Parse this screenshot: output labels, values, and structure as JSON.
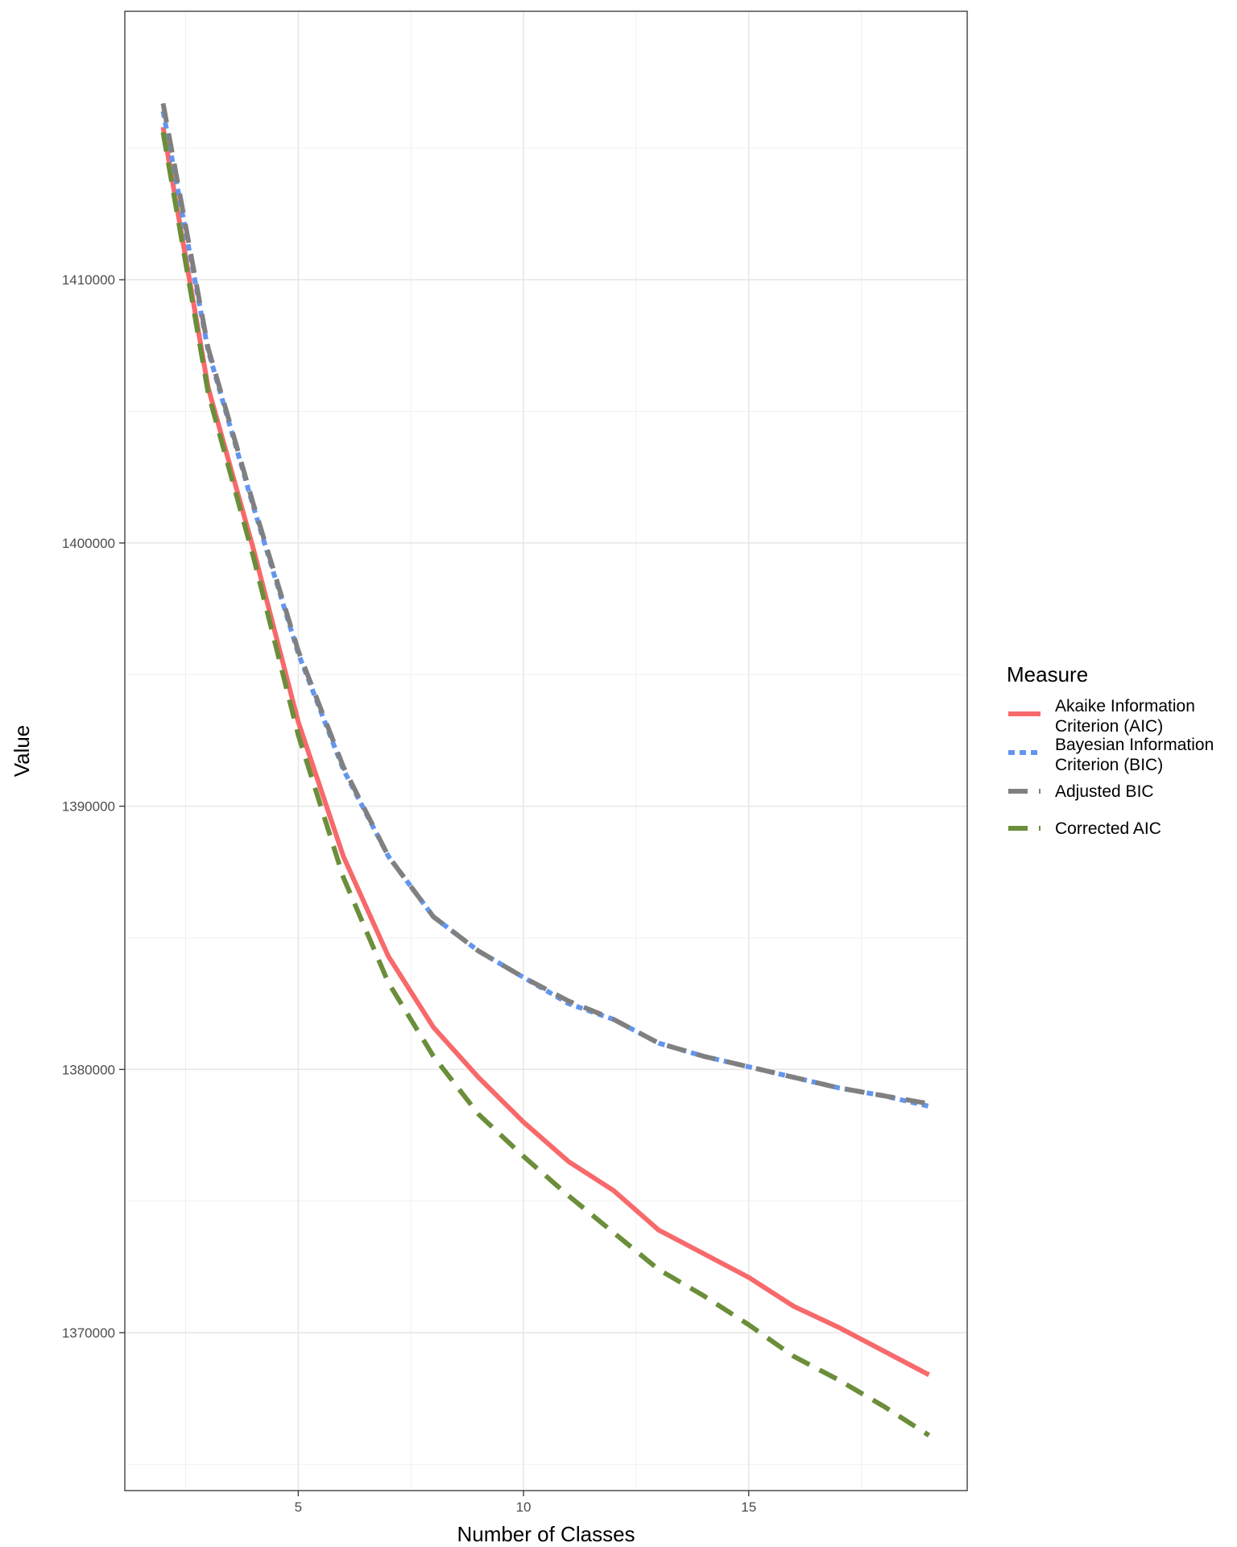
{
  "chart_data": {
    "type": "line",
    "xlabel": "Number of Classes",
    "ylabel": "Value",
    "xlim": [
      1.15,
      19.85
    ],
    "ylim": [
      1364000,
      1420200
    ],
    "x_ticks": [
      5,
      10,
      15
    ],
    "y_ticks": [
      1370000,
      1380000,
      1390000,
      1400000,
      1410000
    ],
    "grid": true,
    "legend": {
      "title": "Measure",
      "position": "right",
      "entries": [
        {
          "label_lines": [
            "Akaike Information",
            "Criterion (AIC)"
          ],
          "color": "#F8696B",
          "dash": "solid"
        },
        {
          "label_lines": [
            "Bayesian Information",
            "Criterion (BIC)"
          ],
          "color": "#6495ED",
          "dash": "dotted"
        },
        {
          "label_lines": [
            "Adjusted BIC"
          ],
          "color": "#808080",
          "dash": "dashed"
        },
        {
          "label_lines": [
            "Corrected AIC"
          ],
          "color": "#6B8E3A",
          "dash": "dashed"
        }
      ]
    },
    "x": [
      2,
      3,
      4,
      5,
      6,
      7,
      8,
      9,
      10,
      11,
      12,
      13,
      14,
      15,
      16,
      17,
      18,
      19
    ],
    "series": [
      {
        "name": "Akaike Information Criterion (AIC)",
        "color": "#F8696B",
        "dash": "solid",
        "values": [
          1415800,
          1405900,
          1399800,
          1393200,
          1388100,
          1384300,
          1381600,
          1379700,
          1378000,
          1376500,
          1375400,
          1373900,
          1373000,
          1372100,
          1371000,
          1370200,
          1369300,
          1368400
        ]
      },
      {
        "name": "Bayesian Information Criterion (BIC)",
        "color": "#6495ED",
        "dash": "dotted",
        "values": [
          1416400,
          1407300,
          1401400,
          1395800,
          1391400,
          1388100,
          1385800,
          1384500,
          1383500,
          1382500,
          1381900,
          1381000,
          1380500,
          1380100,
          1379700,
          1379300,
          1379000,
          1378600
        ]
      },
      {
        "name": "Adjusted BIC",
        "color": "#808080",
        "dash": "dashed",
        "values": [
          1416700,
          1407400,
          1401500,
          1395900,
          1391500,
          1388100,
          1385800,
          1384500,
          1383500,
          1382600,
          1381900,
          1381000,
          1380500,
          1380100,
          1379700,
          1379300,
          1379000,
          1378700
        ]
      },
      {
        "name": "Corrected AIC",
        "color": "#6B8E3A",
        "dash": "dashed",
        "values": [
          1415600,
          1405700,
          1399500,
          1392700,
          1387300,
          1383300,
          1380500,
          1378300,
          1376700,
          1375200,
          1373800,
          1372400,
          1371400,
          1370300,
          1369100,
          1368200,
          1367200,
          1366100
        ]
      }
    ]
  }
}
